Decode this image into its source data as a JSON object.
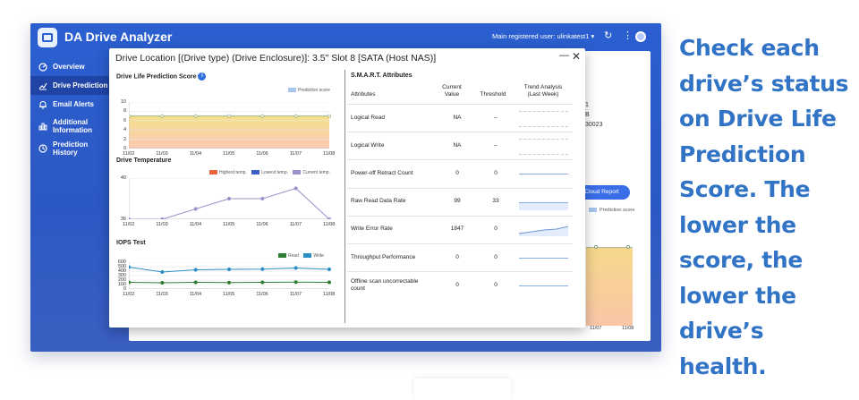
{
  "app": {
    "title": "DA Drive Analyzer",
    "user": "Main registered user: ulinkatest1 ▾",
    "accent": "#2b5fd0"
  },
  "topbar_icons": [
    "refresh-icon",
    "more-vertical-icon",
    "account-icon"
  ],
  "sidebar": {
    "items": [
      {
        "label": "Overview",
        "icon": "speedometer-icon"
      },
      {
        "label": "Drive Prediction",
        "icon": "trend-chart-icon",
        "active": true
      },
      {
        "label": "Email Alerts",
        "icon": "bell-icon"
      },
      {
        "label": "Additional Information",
        "icon": "bar-chart-icon"
      },
      {
        "label": "Prediction History",
        "icon": "clock-icon"
      }
    ]
  },
  "background": {
    "fragments": [
      "1",
      "B",
      "30023"
    ],
    "cloud_button": "a Cloud Report",
    "legend": "Prediction score",
    "ticks": [
      "11/07",
      "11/08"
    ]
  },
  "modal": {
    "title": "Drive Location [(Drive type) (Drive Enclosure)]: 3.5\" Slot 8 [SATA (Host NAS)]",
    "minimize": "—",
    "close": "✕"
  },
  "prediction": {
    "title": "Drive Life Prediction Score",
    "info_icon": "i",
    "legend": "Prediction score",
    "chart_data": {
      "type": "line",
      "title": "Drive Life Prediction Score",
      "x": [
        "11/02",
        "11/03",
        "11/04",
        "11/05",
        "11/06",
        "11/07",
        "11/08"
      ],
      "series": [
        {
          "name": "Prediction score",
          "values": [
            7,
            7,
            7,
            7,
            7,
            7,
            7
          ]
        }
      ],
      "ylim": [
        0,
        10
      ],
      "yticks": [
        "10",
        "8",
        "6",
        "4",
        "2",
        "0"
      ]
    }
  },
  "temperature": {
    "title": "Drive Temperature",
    "legend": [
      "Highest temp.",
      "Lowest temp.",
      "Current temp."
    ],
    "legend_colors": [
      "#e8643c",
      "#3e5fc8",
      "#9a93c9"
    ],
    "chart_data": {
      "type": "line",
      "title": "Drive Temperature",
      "x": [
        "11/02",
        "11/03",
        "11/04",
        "11/05",
        "11/06",
        "11/07",
        "11/08"
      ],
      "series": [
        {
          "name": "Current temp.",
          "values": [
            36,
            36,
            37,
            38,
            38,
            39,
            36
          ]
        }
      ],
      "ylim": [
        36,
        40
      ],
      "yticks": [
        "40",
        "36"
      ]
    }
  },
  "iops": {
    "title": "IOPS Test",
    "legend": [
      "Read",
      "Write"
    ],
    "legend_colors": [
      "#2e7d32",
      "#2b8fc6"
    ],
    "chart_data": {
      "type": "line",
      "title": "IOPS Test",
      "x": [
        "11/02",
        "11/03",
        "11/04",
        "11/05",
        "11/06",
        "11/07",
        "11/08"
      ],
      "series": [
        {
          "name": "Read",
          "values": [
            150,
            140,
            150,
            145,
            150,
            155,
            150
          ]
        },
        {
          "name": "Write",
          "values": [
            490,
            380,
            430,
            440,
            445,
            470,
            440
          ]
        }
      ],
      "ylim": [
        0,
        600
      ],
      "yticks": [
        "600",
        "500",
        "400",
        "300",
        "200",
        "100",
        "0"
      ]
    }
  },
  "smart": {
    "title": "S.M.A.R.T. Attributes",
    "headers": [
      "Attributes",
      "Current\nValue",
      "Threshold",
      "Trend Analysis\n(Last Week)"
    ],
    "rows": [
      {
        "name": "Logical Read",
        "current": "NA",
        "threshold": "--",
        "trend": "dashed"
      },
      {
        "name": "Logical Write",
        "current": "NA",
        "threshold": "--",
        "trend": "dashed"
      },
      {
        "name": "Power-off Retract Count",
        "current": "0",
        "threshold": "0",
        "trend": "flat"
      },
      {
        "name": "Raw Read Data Rate",
        "current": "99",
        "threshold": "33",
        "trend": "area"
      },
      {
        "name": "Write Error Rate",
        "current": "1847",
        "threshold": "0",
        "trend": "rising"
      },
      {
        "name": "Throughput Performance",
        "current": "0",
        "threshold": "0",
        "trend": "flat"
      },
      {
        "name": "Offline scan uncorrectable count",
        "current": "0",
        "threshold": "0",
        "trend": "flat"
      }
    ]
  },
  "tagline": "Check each drive’s status on Drive Life Prediction Score. The lower the score, the lower the drive’s health."
}
